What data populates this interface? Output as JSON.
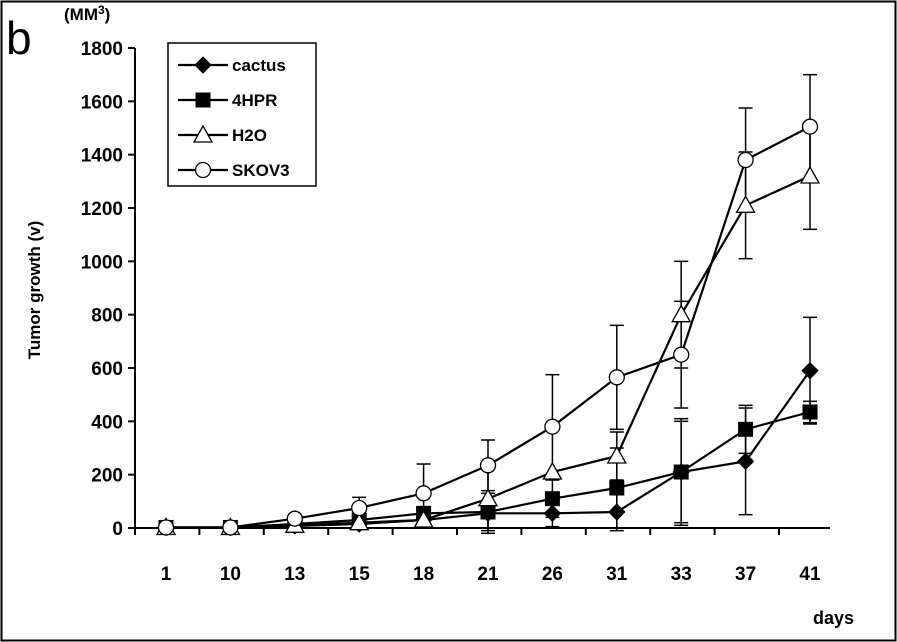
{
  "chart_data": {
    "type": "line",
    "panel_label": "b",
    "unit_label_base": "(MM",
    "unit_label_sup": "3",
    "unit_label_close": ")",
    "ylabel": "Tumor growth (v)",
    "xlabel": "days",
    "categories": [
      "1",
      "10",
      "13",
      "15",
      "18",
      "21",
      "26",
      "31",
      "33",
      "37",
      "41"
    ],
    "ylim": [
      0,
      1800
    ],
    "yticks": [
      "0",
      "200",
      "400",
      "600",
      "800",
      "1000",
      "1200",
      "1400",
      "1600",
      "1800"
    ],
    "grid": false,
    "legend_position": "top-left",
    "series": [
      {
        "name": "cactus",
        "marker": "diamond-filled",
        "values": [
          2,
          2,
          8,
          15,
          30,
          55,
          55,
          60,
          210,
          250,
          590
        ],
        "errors": [
          0,
          0,
          0,
          0,
          0,
          0,
          50,
          70,
          200,
          200,
          200
        ]
      },
      {
        "name": "4HPR",
        "marker": "square-filled",
        "values": [
          2,
          2,
          15,
          30,
          55,
          60,
          110,
          150,
          210,
          370,
          435
        ],
        "errors": [
          0,
          0,
          0,
          0,
          0,
          70,
          70,
          150,
          190,
          90,
          40
        ]
      },
      {
        "name": "H2O",
        "marker": "triangle-open",
        "values": [
          2,
          2,
          10,
          20,
          30,
          110,
          210,
          270,
          800,
          1210,
          1320
        ],
        "errors": [
          0,
          0,
          0,
          0,
          0,
          130,
          0,
          90,
          200,
          200,
          200
        ]
      },
      {
        "name": "SKOV3",
        "marker": "circle-open",
        "values": [
          2,
          2,
          35,
          75,
          130,
          235,
          380,
          565,
          650,
          1380,
          1505
        ],
        "errors": [
          0,
          0,
          0,
          40,
          110,
          95,
          195,
          195,
          200,
          195,
          195
        ]
      }
    ]
  }
}
